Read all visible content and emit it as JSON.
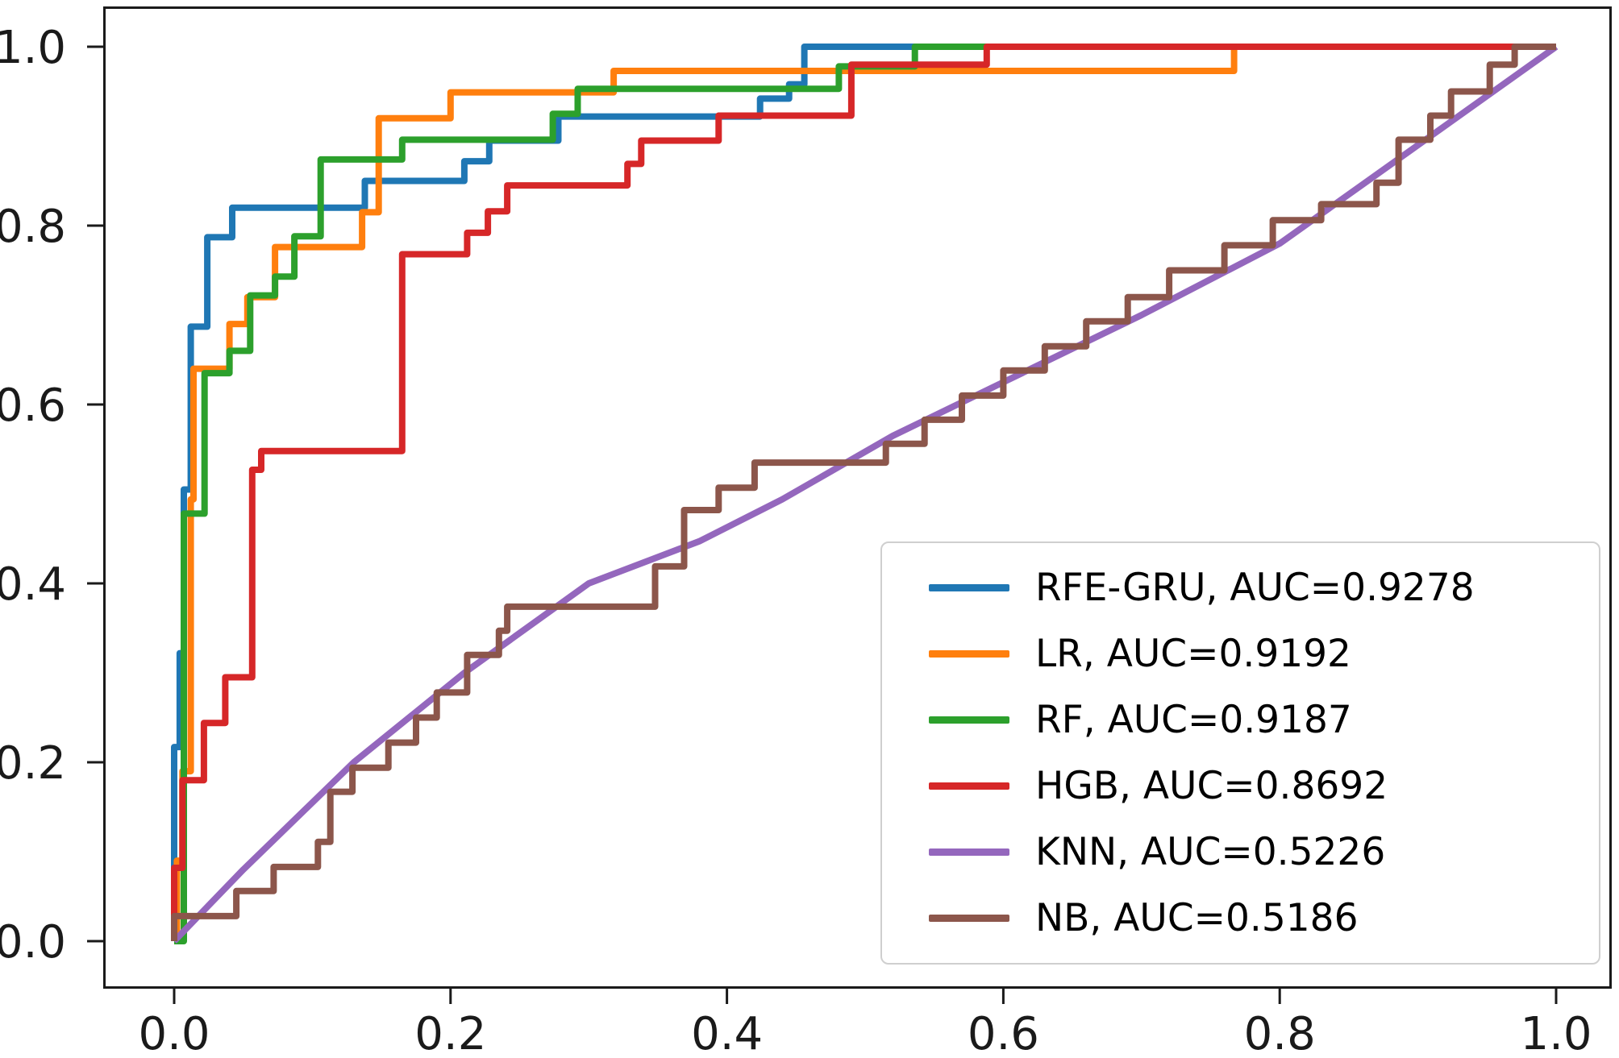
{
  "figure": {
    "background": "#ffffff"
  },
  "axes": {
    "x_tick_labels": [
      "0.0",
      "0.2",
      "0.4",
      "0.6",
      "0.8",
      "1.0"
    ],
    "x_tick_values": [
      0.0,
      0.2,
      0.4,
      0.6,
      0.8,
      1.0
    ],
    "y_tick_labels": [
      "0.0",
      "0.2",
      "0.4",
      "0.6",
      "0.8",
      "1.0"
    ],
    "y_tick_values": [
      0.0,
      0.2,
      0.4,
      0.6,
      0.8,
      1.0
    ],
    "spine_color": "#1a1a1a",
    "xlabel": "",
    "ylabel": "",
    "title": ""
  },
  "chart_data": {
    "type": "line",
    "title": "",
    "xlabel": "",
    "ylabel": "",
    "xlim": [
      -0.05,
      1.05
    ],
    "ylim": [
      -0.05,
      1.05
    ],
    "grid": false,
    "legend_position": "lower right",
    "series": [
      {
        "name": "RFE-GRU",
        "auc": "0.9278",
        "label": "RFE-GRU, AUC=0.9278",
        "color": "#1f77b4",
        "style": "step",
        "points": [
          [
            0,
            0
          ],
          [
            0,
            0.217
          ],
          [
            0.004,
            0.217
          ],
          [
            0.004,
            0.322
          ],
          [
            0.007,
            0.322
          ],
          [
            0.007,
            0.505
          ],
          [
            0.012,
            0.505
          ],
          [
            0.012,
            0.687
          ],
          [
            0.024,
            0.687
          ],
          [
            0.024,
            0.787
          ],
          [
            0.042,
            0.787
          ],
          [
            0.042,
            0.82
          ],
          [
            0.138,
            0.82
          ],
          [
            0.138,
            0.85
          ],
          [
            0.21,
            0.85
          ],
          [
            0.21,
            0.872
          ],
          [
            0.228,
            0.872
          ],
          [
            0.228,
            0.895
          ],
          [
            0.278,
            0.895
          ],
          [
            0.278,
            0.922
          ],
          [
            0.424,
            0.922
          ],
          [
            0.424,
            0.942
          ],
          [
            0.445,
            0.942
          ],
          [
            0.445,
            0.958
          ],
          [
            0.456,
            0.958
          ],
          [
            0.456,
            1.0
          ],
          [
            1,
            1
          ]
        ]
      },
      {
        "name": "LR",
        "auc": "0.9192",
        "label": "LR, AUC=0.9192",
        "color": "#ff7f0e",
        "style": "step",
        "points": [
          [
            0,
            0
          ],
          [
            0.002,
            0
          ],
          [
            0.002,
            0.09
          ],
          [
            0.006,
            0.09
          ],
          [
            0.006,
            0.19
          ],
          [
            0.012,
            0.19
          ],
          [
            0.012,
            0.494
          ],
          [
            0.014,
            0.494
          ],
          [
            0.014,
            0.64
          ],
          [
            0.04,
            0.64
          ],
          [
            0.04,
            0.69
          ],
          [
            0.053,
            0.69
          ],
          [
            0.053,
            0.72
          ],
          [
            0.073,
            0.72
          ],
          [
            0.073,
            0.776
          ],
          [
            0.136,
            0.776
          ],
          [
            0.136,
            0.815
          ],
          [
            0.148,
            0.815
          ],
          [
            0.148,
            0.92
          ],
          [
            0.2,
            0.92
          ],
          [
            0.2,
            0.949
          ],
          [
            0.318,
            0.949
          ],
          [
            0.318,
            0.973
          ],
          [
            0.767,
            0.973
          ],
          [
            0.767,
            1.0
          ],
          [
            1,
            1
          ]
        ]
      },
      {
        "name": "RF",
        "auc": "0.9187",
        "label": "RF, AUC=0.9187",
        "color": "#2ca02c",
        "style": "step",
        "points": [
          [
            0,
            0
          ],
          [
            0.007,
            0
          ],
          [
            0.007,
            0.478
          ],
          [
            0.022,
            0.478
          ],
          [
            0.022,
            0.635
          ],
          [
            0.04,
            0.635
          ],
          [
            0.04,
            0.66
          ],
          [
            0.055,
            0.66
          ],
          [
            0.055,
            0.722
          ],
          [
            0.073,
            0.722
          ],
          [
            0.073,
            0.743
          ],
          [
            0.087,
            0.743
          ],
          [
            0.087,
            0.788
          ],
          [
            0.106,
            0.788
          ],
          [
            0.106,
            0.874
          ],
          [
            0.165,
            0.874
          ],
          [
            0.165,
            0.896
          ],
          [
            0.274,
            0.896
          ],
          [
            0.274,
            0.925
          ],
          [
            0.292,
            0.925
          ],
          [
            0.292,
            0.953
          ],
          [
            0.481,
            0.953
          ],
          [
            0.481,
            0.978
          ],
          [
            0.536,
            0.978
          ],
          [
            0.536,
            1.0
          ],
          [
            1,
            1
          ]
        ]
      },
      {
        "name": "HGB",
        "auc": "0.8692",
        "label": "HGB, AUC=0.8692",
        "color": "#d62728",
        "style": "step",
        "points": [
          [
            0,
            0
          ],
          [
            0,
            0.082
          ],
          [
            0.006,
            0.082
          ],
          [
            0.006,
            0.18
          ],
          [
            0.0215,
            0.18
          ],
          [
            0.0215,
            0.244
          ],
          [
            0.037,
            0.244
          ],
          [
            0.037,
            0.295
          ],
          [
            0.0565,
            0.295
          ],
          [
            0.0565,
            0.527
          ],
          [
            0.063,
            0.527
          ],
          [
            0.063,
            0.548
          ],
          [
            0.165,
            0.548
          ],
          [
            0.165,
            0.768
          ],
          [
            0.212,
            0.768
          ],
          [
            0.212,
            0.792
          ],
          [
            0.227,
            0.792
          ],
          [
            0.227,
            0.816
          ],
          [
            0.241,
            0.816
          ],
          [
            0.241,
            0.845
          ],
          [
            0.328,
            0.845
          ],
          [
            0.328,
            0.869
          ],
          [
            0.338,
            0.869
          ],
          [
            0.338,
            0.895
          ],
          [
            0.394,
            0.895
          ],
          [
            0.394,
            0.923
          ],
          [
            0.49,
            0.923
          ],
          [
            0.49,
            0.98
          ],
          [
            0.588,
            0.98
          ],
          [
            0.588,
            1.0
          ],
          [
            1,
            1
          ]
        ]
      },
      {
        "name": "KNN",
        "auc": "0.5226",
        "label": "KNN, AUC=0.5226",
        "color": "#9467bd",
        "style": "line",
        "points": [
          [
            0,
            0
          ],
          [
            0.05,
            0.08
          ],
          [
            0.13,
            0.2
          ],
          [
            0.21,
            0.3
          ],
          [
            0.3,
            0.4
          ],
          [
            0.38,
            0.447
          ],
          [
            0.44,
            0.494
          ],
          [
            0.52,
            0.565
          ],
          [
            0.6,
            0.625
          ],
          [
            0.7,
            0.7
          ],
          [
            0.8,
            0.78
          ],
          [
            0.9,
            0.89
          ],
          [
            1,
            1
          ]
        ]
      },
      {
        "name": "NB",
        "auc": "0.5186",
        "label": "NB, AUC=0.5186",
        "color": "#8c564b",
        "style": "step",
        "points": [
          [
            0,
            0
          ],
          [
            0,
            0.028
          ],
          [
            0.045,
            0.028
          ],
          [
            0.045,
            0.056
          ],
          [
            0.072,
            0.056
          ],
          [
            0.072,
            0.083
          ],
          [
            0.104,
            0.083
          ],
          [
            0.104,
            0.111
          ],
          [
            0.113,
            0.111
          ],
          [
            0.113,
            0.167
          ],
          [
            0.129,
            0.167
          ],
          [
            0.129,
            0.194
          ],
          [
            0.155,
            0.194
          ],
          [
            0.155,
            0.222
          ],
          [
            0.175,
            0.222
          ],
          [
            0.175,
            0.25
          ],
          [
            0.19,
            0.25
          ],
          [
            0.19,
            0.278
          ],
          [
            0.212,
            0.278
          ],
          [
            0.212,
            0.32
          ],
          [
            0.235,
            0.32
          ],
          [
            0.235,
            0.347
          ],
          [
            0.241,
            0.347
          ],
          [
            0.241,
            0.374
          ],
          [
            0.348,
            0.374
          ],
          [
            0.348,
            0.419
          ],
          [
            0.369,
            0.419
          ],
          [
            0.369,
            0.482
          ],
          [
            0.394,
            0.482
          ],
          [
            0.394,
            0.507
          ],
          [
            0.42,
            0.507
          ],
          [
            0.42,
            0.535
          ],
          [
            0.515,
            0.535
          ],
          [
            0.515,
            0.556
          ],
          [
            0.543,
            0.556
          ],
          [
            0.543,
            0.583
          ],
          [
            0.57,
            0.583
          ],
          [
            0.57,
            0.61
          ],
          [
            0.6,
            0.61
          ],
          [
            0.6,
            0.638
          ],
          [
            0.63,
            0.638
          ],
          [
            0.63,
            0.665
          ],
          [
            0.66,
            0.665
          ],
          [
            0.66,
            0.693
          ],
          [
            0.69,
            0.693
          ],
          [
            0.69,
            0.72
          ],
          [
            0.72,
            0.72
          ],
          [
            0.72,
            0.75
          ],
          [
            0.76,
            0.75
          ],
          [
            0.76,
            0.778
          ],
          [
            0.795,
            0.778
          ],
          [
            0.795,
            0.806
          ],
          [
            0.83,
            0.806
          ],
          [
            0.83,
            0.824
          ],
          [
            0.87,
            0.824
          ],
          [
            0.87,
            0.848
          ],
          [
            0.886,
            0.848
          ],
          [
            0.886,
            0.896
          ],
          [
            0.909,
            0.896
          ],
          [
            0.909,
            0.923
          ],
          [
            0.924,
            0.923
          ],
          [
            0.924,
            0.95
          ],
          [
            0.952,
            0.95
          ],
          [
            0.952,
            0.98
          ],
          [
            0.97,
            0.98
          ],
          [
            0.97,
            1.0
          ],
          [
            1,
            1
          ]
        ]
      }
    ]
  },
  "legend": {
    "items": [
      {
        "label": "RFE-GRU, AUC=0.9278",
        "color": "#1f77b4"
      },
      {
        "label": "LR, AUC=0.9192",
        "color": "#ff7f0e"
      },
      {
        "label": "RF, AUC=0.9187",
        "color": "#2ca02c"
      },
      {
        "label": "HGB, AUC=0.8692",
        "color": "#d62728"
      },
      {
        "label": "KNN, AUC=0.5226",
        "color": "#9467bd"
      },
      {
        "label": "NB, AUC=0.5186",
        "color": "#8c564b"
      }
    ]
  }
}
